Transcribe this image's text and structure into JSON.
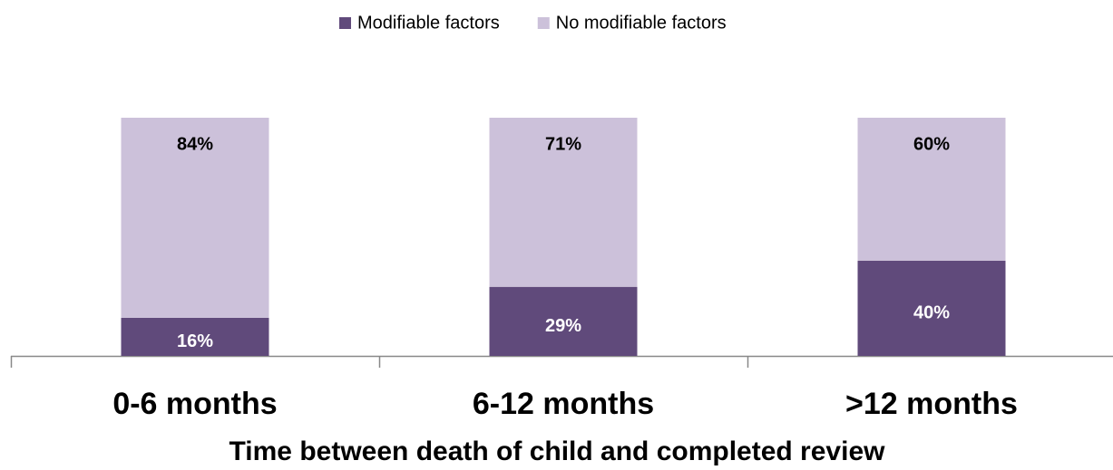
{
  "chart_data": {
    "type": "stacked_bar",
    "categories": [
      "0-6 months",
      "6-12 months",
      ">12 months"
    ],
    "x_label": "Time between death of child and completed review",
    "ylim": [
      0,
      100
    ],
    "legend": "top",
    "series": [
      {
        "name": "Modifiable factors",
        "color": "#604a7b",
        "values": [
          16,
          29,
          40
        ],
        "value_labels": [
          "16%",
          "29%",
          "40%"
        ]
      },
      {
        "name": "No modifiable factors",
        "color": "#ccc1da",
        "values": [
          84,
          71,
          60
        ],
        "value_labels": [
          "84%",
          "71%",
          "60%"
        ]
      }
    ]
  }
}
